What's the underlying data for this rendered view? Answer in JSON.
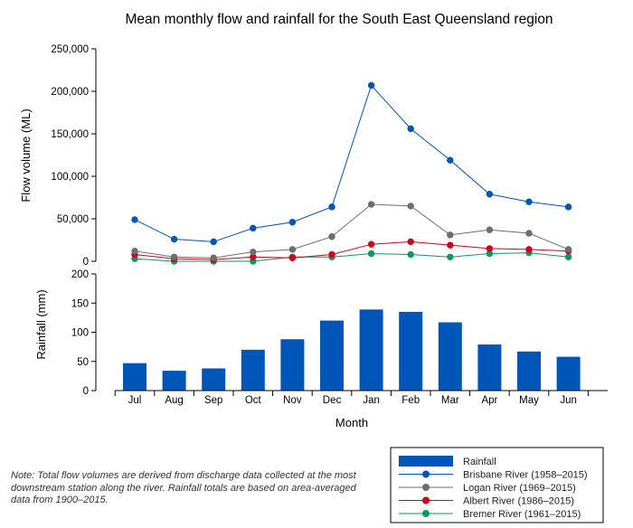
{
  "chart_data": {
    "type": "line+bar",
    "title": "Mean monthly flow and rainfall for the South East Queensland region",
    "xlabel": "Month",
    "categories": [
      "Jul",
      "Aug",
      "Sep",
      "Oct",
      "Nov",
      "Dec",
      "Jan",
      "Feb",
      "Mar",
      "Apr",
      "May",
      "Jun"
    ],
    "flow_panel": {
      "ylabel": "Flow volume (ML)",
      "ylim": [
        0,
        250000
      ],
      "yticks": [
        0,
        50000,
        100000,
        150000,
        200000,
        250000
      ],
      "ytick_labels": [
        "0",
        "50,000",
        "100,000",
        "150,000",
        "200,000",
        "250,000"
      ],
      "series": [
        {
          "name": "Brisbane River (1958–2015)",
          "color": "#0055b8",
          "values": [
            49000,
            26000,
            23000,
            39000,
            46000,
            64000,
            207000,
            156000,
            119000,
            79000,
            70000,
            64000
          ]
        },
        {
          "name": "Logan River (1969–2015)",
          "color": "#6e6e6e",
          "values": [
            12000,
            5000,
            4000,
            11000,
            14000,
            29000,
            67000,
            65000,
            31000,
            37000,
            33000,
            14000
          ]
        },
        {
          "name": "Albert River (1986–2015)",
          "color": "#d0021b",
          "values": [
            8000,
            3000,
            2000,
            5000,
            4000,
            8000,
            20000,
            23000,
            19000,
            15000,
            14000,
            12000
          ]
        },
        {
          "name": "Bremer River (1961–2015)",
          "color": "#0a9a5c",
          "values": [
            3000,
            0,
            0,
            0,
            5000,
            5000,
            9000,
            8000,
            5000,
            9000,
            10000,
            5000
          ]
        }
      ]
    },
    "rain_panel": {
      "ylabel": "Rainfall (mm)",
      "ylim": [
        0,
        200
      ],
      "yticks": [
        0,
        50,
        100,
        150,
        200
      ],
      "ytick_labels": [
        "0",
        "50",
        "100",
        "150",
        "200"
      ],
      "series": [
        {
          "name": "Rainfall",
          "color": "#0055b8",
          "values": [
            47,
            34,
            38,
            70,
            88,
            120,
            139,
            135,
            117,
            79,
            67,
            58
          ]
        }
      ]
    },
    "legend": {
      "position": "bottom-right",
      "entries": [
        "Rainfall",
        "Brisbane River (1958–2015)",
        "Logan River (1969–2015)",
        "Albert River (1986–2015)",
        "Bremer River (1961–2015)"
      ]
    }
  },
  "note": "Note: Total flow volumes are derived from discharge data collected at the most downstream station along the river. Rainfall totals are based on area-averaged data from 1900–2015."
}
